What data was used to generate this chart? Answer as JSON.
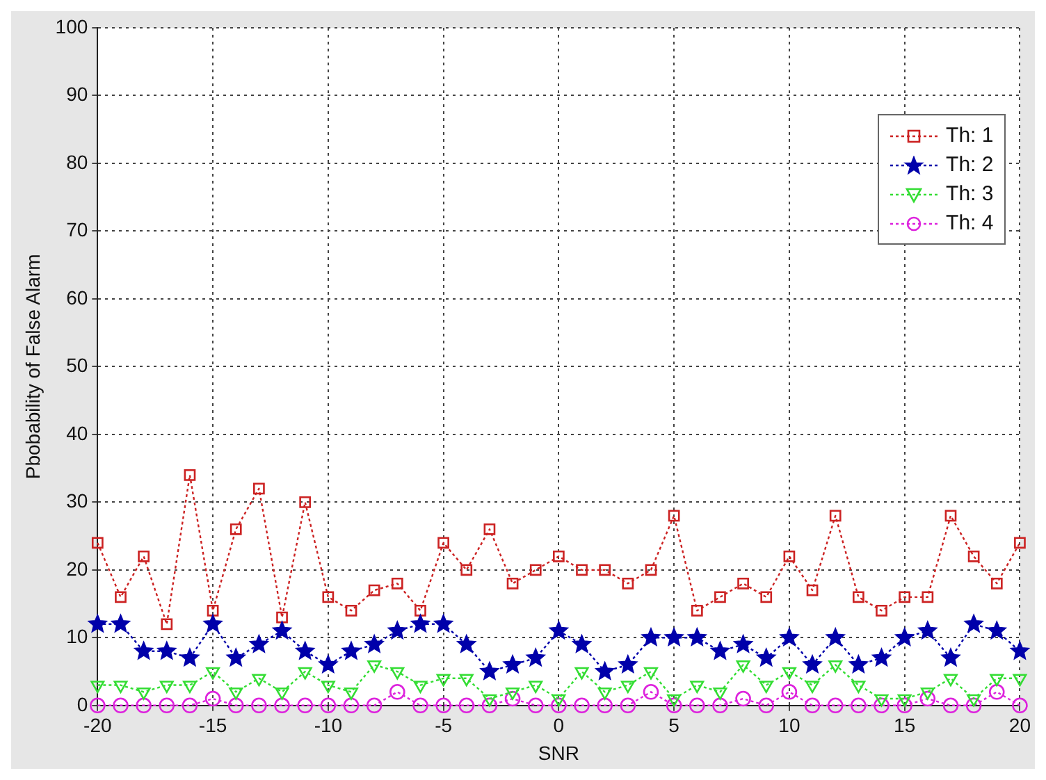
{
  "chart_data": {
    "type": "line",
    "xlabel": "SNR",
    "ylabel": "Pbobability of False Alarm",
    "x": [
      -20,
      -19,
      -18,
      -17,
      -16,
      -15,
      -14,
      -13,
      -12,
      -11,
      -10,
      -9,
      -8,
      -7,
      -6,
      -5,
      -4,
      -3,
      -2,
      -1,
      0,
      1,
      2,
      3,
      4,
      5,
      6,
      7,
      8,
      9,
      10,
      11,
      12,
      13,
      14,
      15,
      16,
      17,
      18,
      19,
      20
    ],
    "series": [
      {
        "name": "Th: 1",
        "color": "#cc2222",
        "marker": "square",
        "values": [
          24,
          16,
          22,
          12,
          34,
          14,
          26,
          32,
          13,
          30,
          16,
          14,
          17,
          18,
          14,
          24,
          20,
          26,
          18,
          20,
          22,
          20,
          20,
          18,
          20,
          28,
          14,
          16,
          18,
          16,
          22,
          17,
          28,
          16,
          14,
          16,
          16,
          28,
          22,
          18,
          24
        ]
      },
      {
        "name": "Th: 2",
        "color": "#0000aa",
        "marker": "star",
        "values": [
          12,
          12,
          8,
          8,
          7,
          12,
          7,
          9,
          11,
          8,
          6,
          8,
          9,
          11,
          12,
          12,
          9,
          5,
          6,
          7,
          11,
          9,
          5,
          6,
          10,
          10,
          10,
          8,
          9,
          7,
          10,
          6,
          10,
          6,
          7,
          10,
          11,
          7,
          12,
          11,
          8
        ]
      },
      {
        "name": "Th: 3",
        "color": "#33dd33",
        "marker": "triangle",
        "values": [
          3,
          3,
          2,
          3,
          3,
          5,
          2,
          4,
          2,
          5,
          3,
          2,
          6,
          5,
          3,
          4,
          4,
          1,
          2,
          3,
          1,
          5,
          2,
          3,
          5,
          1,
          3,
          2,
          6,
          3,
          5,
          3,
          6,
          3,
          1,
          1,
          2,
          4,
          1,
          4,
          4
        ]
      },
      {
        "name": "Th: 4",
        "color": "#dd22dd",
        "marker": "circle",
        "values": [
          0,
          0,
          0,
          0,
          0,
          1,
          0,
          0,
          0,
          0,
          0,
          0,
          0,
          2,
          0,
          0,
          0,
          0,
          1,
          0,
          0,
          0,
          0,
          0,
          2,
          0,
          0,
          0,
          1,
          0,
          2,
          0,
          0,
          0,
          0,
          0,
          1,
          0,
          0,
          2,
          0
        ]
      }
    ],
    "xlim": [
      -20,
      20
    ],
    "xticks": [
      -20,
      -15,
      -10,
      -5,
      0,
      5,
      10,
      15,
      20
    ],
    "ylim": [
      0,
      100
    ],
    "yticks": [
      0,
      10,
      20,
      30,
      40,
      50,
      60,
      70,
      80,
      90,
      100
    ],
    "grid": true,
    "legend": "top right",
    "line_style": "dotted"
  }
}
